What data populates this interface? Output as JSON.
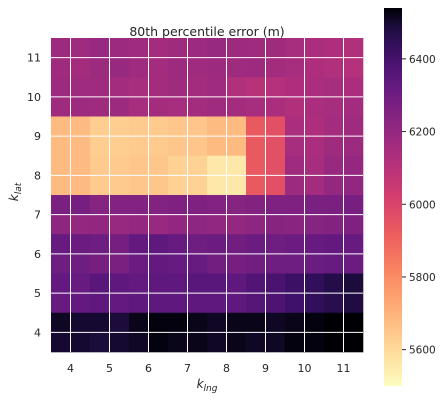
{
  "chart_data": {
    "type": "heatmap",
    "title": "80th percentile error (m)",
    "xlabel_base": "k",
    "xlabel_sub": "lng",
    "ylabel_base": "k",
    "ylabel_sub": "lat",
    "x_ticks": [
      4,
      5,
      6,
      7,
      8,
      9,
      10,
      11
    ],
    "y_ticks": [
      4,
      5,
      6,
      7,
      8,
      9,
      10,
      11
    ],
    "x_range": [
      3.5,
      11.5
    ],
    "y_range": [
      3.5,
      11.5
    ],
    "cell_size": 0.5,
    "grid": true,
    "colormap": "magma_r",
    "colorbar": {
      "range": [
        5500,
        6540
      ],
      "ticks": [
        5600,
        5800,
        6000,
        6200,
        6400
      ],
      "tick_labels": [
        "5600",
        "5800",
        "6000",
        "6200",
        "6400"
      ]
    },
    "z_rows_top_to_bottom": [
      [
        6180,
        6170,
        6190,
        6180,
        6170,
        6160,
        6170,
        6180,
        6190,
        6180,
        6170,
        6170,
        6150,
        6140,
        6130,
        6120
      ],
      [
        6170,
        6160,
        6180,
        6190,
        6170,
        6160,
        6180,
        6170,
        6180,
        6170,
        6180,
        6160,
        6150,
        6130,
        6120,
        6110
      ],
      [
        6180,
        6170,
        6170,
        6160,
        6150,
        6160,
        6170,
        6160,
        6170,
        6120,
        6100,
        6110,
        6130,
        6140,
        6150,
        6140
      ],
      [
        6170,
        6180,
        6170,
        6180,
        6150,
        6160,
        6150,
        6160,
        6170,
        6160,
        6150,
        6140,
        6120,
        6140,
        6150,
        6160
      ],
      [
        5680,
        5680,
        5630,
        5630,
        5640,
        5640,
        5650,
        5650,
        5680,
        5680,
        5930,
        5960,
        6140,
        6130,
        6160,
        6170
      ],
      [
        5680,
        5680,
        5630,
        5630,
        5640,
        5640,
        5650,
        5650,
        5680,
        5680,
        5930,
        5960,
        6150,
        6140,
        6170,
        6180
      ],
      [
        5680,
        5680,
        5640,
        5640,
        5650,
        5650,
        5620,
        5620,
        5560,
        5560,
        5930,
        5960,
        6170,
        6150,
        6190,
        6200
      ],
      [
        5680,
        5680,
        5640,
        5640,
        5650,
        5650,
        5620,
        5620,
        5560,
        5560,
        5930,
        5960,
        6180,
        6160,
        6200,
        6210
      ],
      [
        6270,
        6280,
        6240,
        6250,
        6250,
        6250,
        6260,
        6260,
        6250,
        6240,
        6250,
        6260,
        6260,
        6270,
        6270,
        6280
      ],
      [
        6220,
        6200,
        6210,
        6190,
        6200,
        6190,
        6210,
        6220,
        6210,
        6200,
        6220,
        6240,
        6230,
        6240,
        6250,
        6260
      ],
      [
        6320,
        6310,
        6300,
        6280,
        6330,
        6340,
        6320,
        6300,
        6310,
        6290,
        6310,
        6300,
        6310,
        6320,
        6330,
        6320
      ],
      [
        6300,
        6300,
        6280,
        6270,
        6310,
        6330,
        6320,
        6320,
        6290,
        6280,
        6290,
        6300,
        6300,
        6310,
        6320,
        6310
      ],
      [
        6330,
        6320,
        6350,
        6340,
        6330,
        6340,
        6340,
        6350,
        6350,
        6340,
        6370,
        6390,
        6420,
        6440,
        6470,
        6490
      ],
      [
        6320,
        6330,
        6340,
        6330,
        6340,
        6340,
        6340,
        6340,
        6340,
        6340,
        6360,
        6380,
        6410,
        6440,
        6460,
        6480
      ],
      [
        6510,
        6500,
        6500,
        6490,
        6520,
        6530,
        6530,
        6520,
        6510,
        6520,
        6520,
        6510,
        6520,
        6530,
        6540,
        6540
      ],
      [
        6500,
        6500,
        6490,
        6500,
        6510,
        6530,
        6520,
        6520,
        6510,
        6520,
        6510,
        6510,
        6530,
        6530,
        6540,
        6540
      ]
    ]
  }
}
